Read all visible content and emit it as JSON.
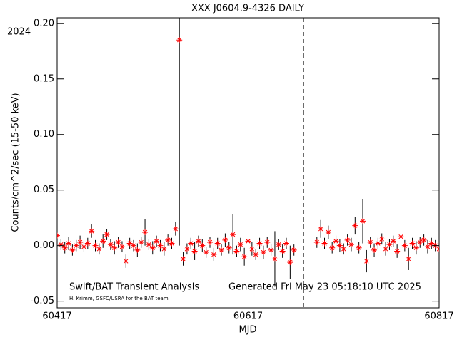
{
  "chart_data": {
    "type": "errorbar-scatter",
    "title": "XXX J0604.9-4326 DAILY",
    "year_label": "2024",
    "xlabel": "MJD",
    "ylabel": "Counts/cm^2/sec (15-50 keV)",
    "annotations": [
      "Swift/BAT Transient Analysis",
      "Generated Fri May 23 05:18:10 UTC 2025",
      "H. Krimm, GSFC/USRA for the BAT team"
    ],
    "xlim": [
      60417,
      60817
    ],
    "xticks": [
      60417,
      60617,
      60817
    ],
    "ylim": [
      -0.056,
      0.205
    ],
    "yticks": [
      -0.05,
      {
        "value": 0,
        "label": "0.00"
      },
      0.05,
      {
        "value": 0.1,
        "label": "0.10"
      },
      0.15,
      {
        "value": 0.2,
        "label": "0.20"
      }
    ],
    "vline": 60675,
    "series": [
      {
        "color": "#ff0000",
        "x": [
          60417,
          60421,
          60425,
          60429,
          60433,
          60437,
          60441,
          60445,
          60449,
          60453,
          60457,
          60461,
          60465,
          60469,
          60473,
          60477,
          60481,
          60485,
          60489,
          60493,
          60497,
          60501,
          60505,
          60509,
          60513,
          60517,
          60521,
          60525,
          60529,
          60533,
          60537,
          60541,
          60545,
          60549,
          60553,
          60557,
          60561,
          60565,
          60569,
          60573,
          60577,
          60581,
          60585,
          60589,
          60593,
          60597,
          60601,
          60605,
          60609,
          60613,
          60617,
          60621,
          60625,
          60629,
          60633,
          60637,
          60641,
          60645,
          60649,
          60653,
          60657,
          60661,
          60665,
          60689,
          60693,
          60697,
          60701,
          60705,
          60709,
          60713,
          60717,
          60721,
          60725,
          60729,
          60733,
          60737,
          60741,
          60745,
          60749,
          60753,
          60757,
          60761,
          60765,
          60769,
          60773,
          60777,
          60781,
          60785,
          60789,
          60793,
          60797,
          60801,
          60805,
          60809,
          60813,
          60817
        ],
        "values": [
          0.009,
          0.001,
          -0.002,
          0.002,
          -0.004,
          0.0,
          0.003,
          -0.001,
          0.002,
          0.013,
          0.0,
          -0.003,
          0.004,
          0.01,
          0.001,
          -0.002,
          0.003,
          -0.001,
          -0.014,
          0.002,
          0.0,
          -0.004,
          0.003,
          0.012,
          0.001,
          -0.002,
          0.004,
          0.0,
          -0.003,
          0.005,
          0.002,
          0.015,
          0.185,
          -0.012,
          -0.003,
          0.002,
          -0.005,
          0.004,
          0.0,
          -0.006,
          0.003,
          -0.008,
          0.002,
          -0.004,
          0.005,
          -0.002,
          0.01,
          -0.005,
          0.001,
          -0.01,
          0.004,
          -0.003,
          -0.008,
          0.002,
          -0.006,
          0.003,
          -0.004,
          -0.012,
          0.001,
          -0.005,
          0.002,
          -0.015,
          -0.004,
          0.003,
          0.015,
          0.002,
          0.012,
          -0.002,
          0.004,
          0.0,
          -0.003,
          0.005,
          0.001,
          0.018,
          -0.002,
          0.022,
          -0.014,
          0.003,
          -0.004,
          0.002,
          0.006,
          -0.003,
          0.001,
          0.004,
          -0.005,
          0.008,
          0.0,
          -0.012,
          0.002,
          -0.002,
          0.003,
          0.005,
          -0.001,
          0.002,
          0.0,
          -0.003
        ],
        "errors": [
          0.006,
          0.005,
          0.005,
          0.006,
          0.005,
          0.005,
          0.006,
          0.005,
          0.005,
          0.006,
          0.005,
          0.005,
          0.006,
          0.005,
          0.005,
          0.006,
          0.005,
          0.005,
          0.006,
          0.005,
          0.005,
          0.006,
          0.005,
          0.012,
          0.005,
          0.006,
          0.005,
          0.005,
          0.006,
          0.005,
          0.005,
          0.006,
          0.185,
          0.006,
          0.005,
          0.005,
          0.008,
          0.005,
          0.006,
          0.005,
          0.005,
          0.006,
          0.005,
          0.005,
          0.006,
          0.005,
          0.018,
          0.005,
          0.006,
          0.008,
          0.005,
          0.006,
          0.005,
          0.005,
          0.006,
          0.005,
          0.005,
          0.025,
          0.005,
          0.006,
          0.005,
          0.015,
          0.005,
          0.005,
          0.008,
          0.005,
          0.006,
          0.005,
          0.005,
          0.006,
          0.005,
          0.005,
          0.006,
          0.008,
          0.005,
          0.02,
          0.01,
          0.005,
          0.006,
          0.005,
          0.005,
          0.006,
          0.005,
          0.005,
          0.006,
          0.005,
          0.005,
          0.01,
          0.005,
          0.006,
          0.005,
          0.005,
          0.006,
          0.005,
          0.005,
          0.006
        ]
      }
    ]
  }
}
